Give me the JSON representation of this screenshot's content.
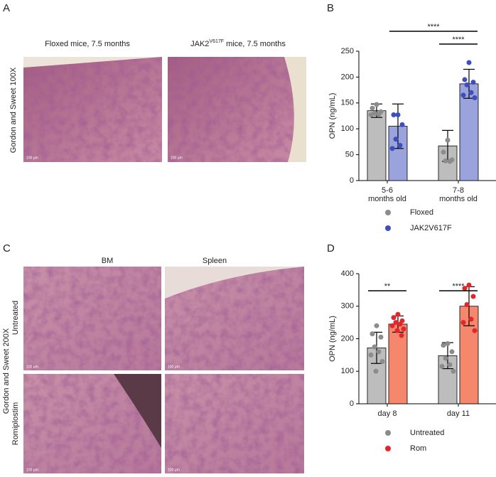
{
  "panels": {
    "A": {
      "label": "A",
      "captions": [
        "Floxed mice, 7.5 months",
        {
          "base": "JAK2",
          "sup": "V617F",
          "rest": " mice, 7.5 months"
        }
      ],
      "side_label": "Gordon and Sweet 100X",
      "scale_bars": [
        "100 μm",
        "100 μm"
      ]
    },
    "C": {
      "label": "C",
      "columns": [
        "BM",
        "Spleen"
      ],
      "rows": [
        "Untreated",
        "Romiplostim"
      ],
      "side_label": "Gordon and Sweet 200X",
      "scale_bars": [
        "100 μm",
        "100 μm",
        "100 μm",
        "100 μm"
      ]
    }
  },
  "chart_data": [
    {
      "type": "bar",
      "label": "B",
      "ylabel": "OPN (ng/mL)",
      "categories": [
        [
          "5-6",
          "months old"
        ],
        [
          "7-8",
          "months old"
        ]
      ],
      "series": [
        {
          "name": "Floxed",
          "color": "#bdbdbd",
          "point_color": "#8c8c8c",
          "values": [
            135,
            67
          ],
          "errors": [
            13,
            30
          ],
          "points": [
            [
              147,
              140,
              133,
              130,
              128,
              127
            ],
            [
              78,
              55,
              40,
              38,
              37
            ]
          ]
        },
        {
          "name": "JAK2V617F",
          "color": "#9aa3dc",
          "point_color": "#3d4fbf",
          "values": [
            105,
            187
          ],
          "errors": [
            43,
            28
          ],
          "points": [
            [
              127,
              127,
              108,
              80,
              68,
              62
            ],
            [
              228,
              195,
              190,
              185,
              170,
              165,
              160
            ]
          ]
        }
      ],
      "ylim": [
        0,
        250
      ],
      "yticks": [
        0,
        50,
        100,
        150,
        200,
        250
      ],
      "annotations": [
        "****",
        "****"
      ]
    },
    {
      "type": "bar",
      "label": "D",
      "ylabel": "OPN (ng/mL)",
      "categories": [
        [
          "day 8"
        ],
        [
          "day 11"
        ]
      ],
      "series": [
        {
          "name": "Untreated",
          "color": "#bdbdbd",
          "point_color": "#8c8c8c",
          "values": [
            172,
            148
          ],
          "errors": [
            48,
            40
          ],
          "points": [
            [
              240,
              215,
              205,
              175,
              160,
              150,
              130,
              100
            ],
            [
              185,
              180,
              160,
              140,
              120,
              115,
              100
            ]
          ]
        },
        {
          "name": "Rom",
          "color": "#f4876c",
          "point_color": "#e3262c",
          "values": [
            245,
            300
          ],
          "errors": [
            25,
            60
          ],
          "points": [
            [
              275,
              265,
              255,
              250,
              245,
              240,
              230,
              225,
              210
            ],
            [
              365,
              355,
              330,
              305,
              260,
              250,
              225
            ]
          ]
        }
      ],
      "ylim": [
        0,
        400
      ],
      "yticks": [
        0,
        100,
        200,
        300,
        400
      ],
      "annotations": [
        "**",
        "****"
      ]
    }
  ]
}
